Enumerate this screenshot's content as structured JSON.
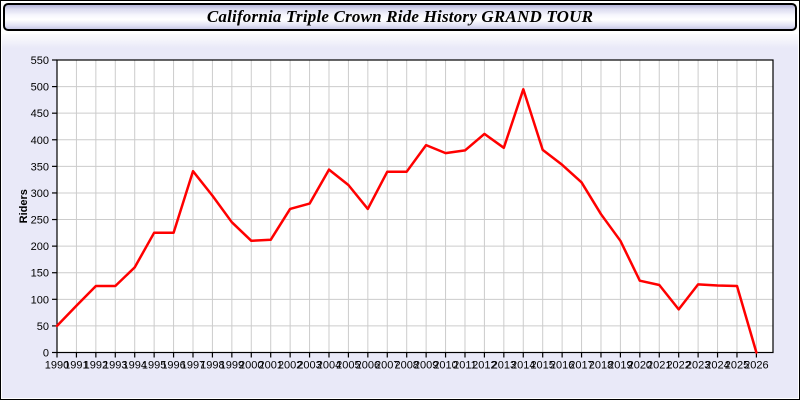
{
  "header": {
    "title": "California Triple Crown Ride History GRAND TOUR"
  },
  "colors": {
    "panel_bg": "#e9e9f8",
    "plot_bg": "#ffffff",
    "grid": "#cccccc",
    "axis": "#000000",
    "line": "#ff0000",
    "text": "#000000"
  },
  "chart_data": {
    "type": "line",
    "title": "California Triple Crown Ride History GRAND TOUR",
    "xlabel": "",
    "ylabel": "Riders",
    "ylim": [
      0,
      550
    ],
    "ytick_step": 50,
    "grid": true,
    "legend": "none",
    "x": [
      1990,
      1991,
      1992,
      1993,
      1994,
      1995,
      1996,
      1997,
      1998,
      1999,
      2000,
      2001,
      2002,
      2003,
      2004,
      2005,
      2006,
      2007,
      2008,
      2009,
      2010,
      2011,
      2012,
      2013,
      2014,
      2015,
      2016,
      2017,
      2018,
      2019,
      2020,
      2021,
      2022,
      2023,
      2024,
      2025,
      2026
    ],
    "series": [
      {
        "name": "Riders",
        "values": [
          50,
          88,
          125,
          125,
          160,
          225,
          225,
          341,
          295,
          245,
          210,
          212,
          270,
          280,
          344,
          315,
          270,
          340,
          340,
          390,
          375,
          380,
          411,
          385,
          495,
          381,
          353,
          320,
          260,
          210,
          135,
          127,
          81,
          128,
          126,
          125,
          0
        ]
      }
    ]
  }
}
